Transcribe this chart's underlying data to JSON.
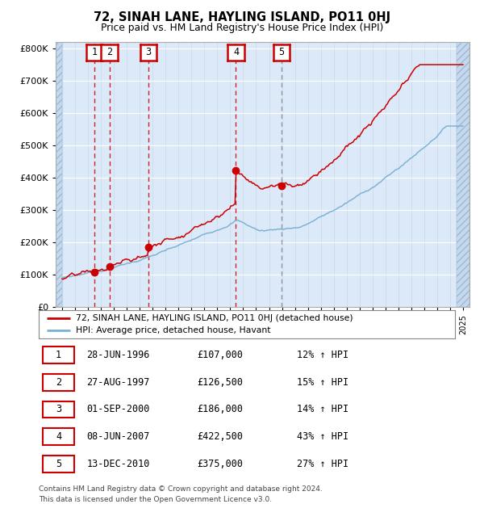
{
  "title": "72, SINAH LANE, HAYLING ISLAND, PO11 0HJ",
  "subtitle": "Price paid vs. HM Land Registry's House Price Index (HPI)",
  "xlim_start": 1993.5,
  "xlim_end": 2025.5,
  "ylim_min": 0,
  "ylim_max": 820000,
  "yticks": [
    0,
    100000,
    200000,
    300000,
    400000,
    500000,
    600000,
    700000,
    800000
  ],
  "ytick_labels": [
    "£0",
    "£100K",
    "£200K",
    "£300K",
    "£400K",
    "£500K",
    "£600K",
    "£700K",
    "£800K"
  ],
  "plot_bg_color": "#dce9f8",
  "red_line_color": "#cc0000",
  "blue_line_color": "#7ab0d4",
  "sale_marker_color": "#cc0000",
  "transaction_dates": [
    1996.49,
    1997.65,
    2000.67,
    2007.44,
    2010.95
  ],
  "transaction_prices": [
    107000,
    126500,
    186000,
    422500,
    375000
  ],
  "transaction_labels": [
    "1",
    "2",
    "3",
    "4",
    "5"
  ],
  "transaction_dashed_red": [
    true,
    true,
    true,
    true,
    false
  ],
  "legend_line1": "72, SINAH LANE, HAYLING ISLAND, PO11 0HJ (detached house)",
  "legend_line2": "HPI: Average price, detached house, Havant",
  "table_data": [
    [
      "1",
      "28-JUN-1996",
      "£107,000",
      "12% ↑ HPI"
    ],
    [
      "2",
      "27-AUG-1997",
      "£126,500",
      "15% ↑ HPI"
    ],
    [
      "3",
      "01-SEP-2000",
      "£186,000",
      "14% ↑ HPI"
    ],
    [
      "4",
      "08-JUN-2007",
      "£422,500",
      "43% ↑ HPI"
    ],
    [
      "5",
      "13-DEC-2010",
      "£375,000",
      "27% ↑ HPI"
    ]
  ],
  "footer": "Contains HM Land Registry data © Crown copyright and database right 2024.\nThis data is licensed under the Open Government Licence v3.0."
}
